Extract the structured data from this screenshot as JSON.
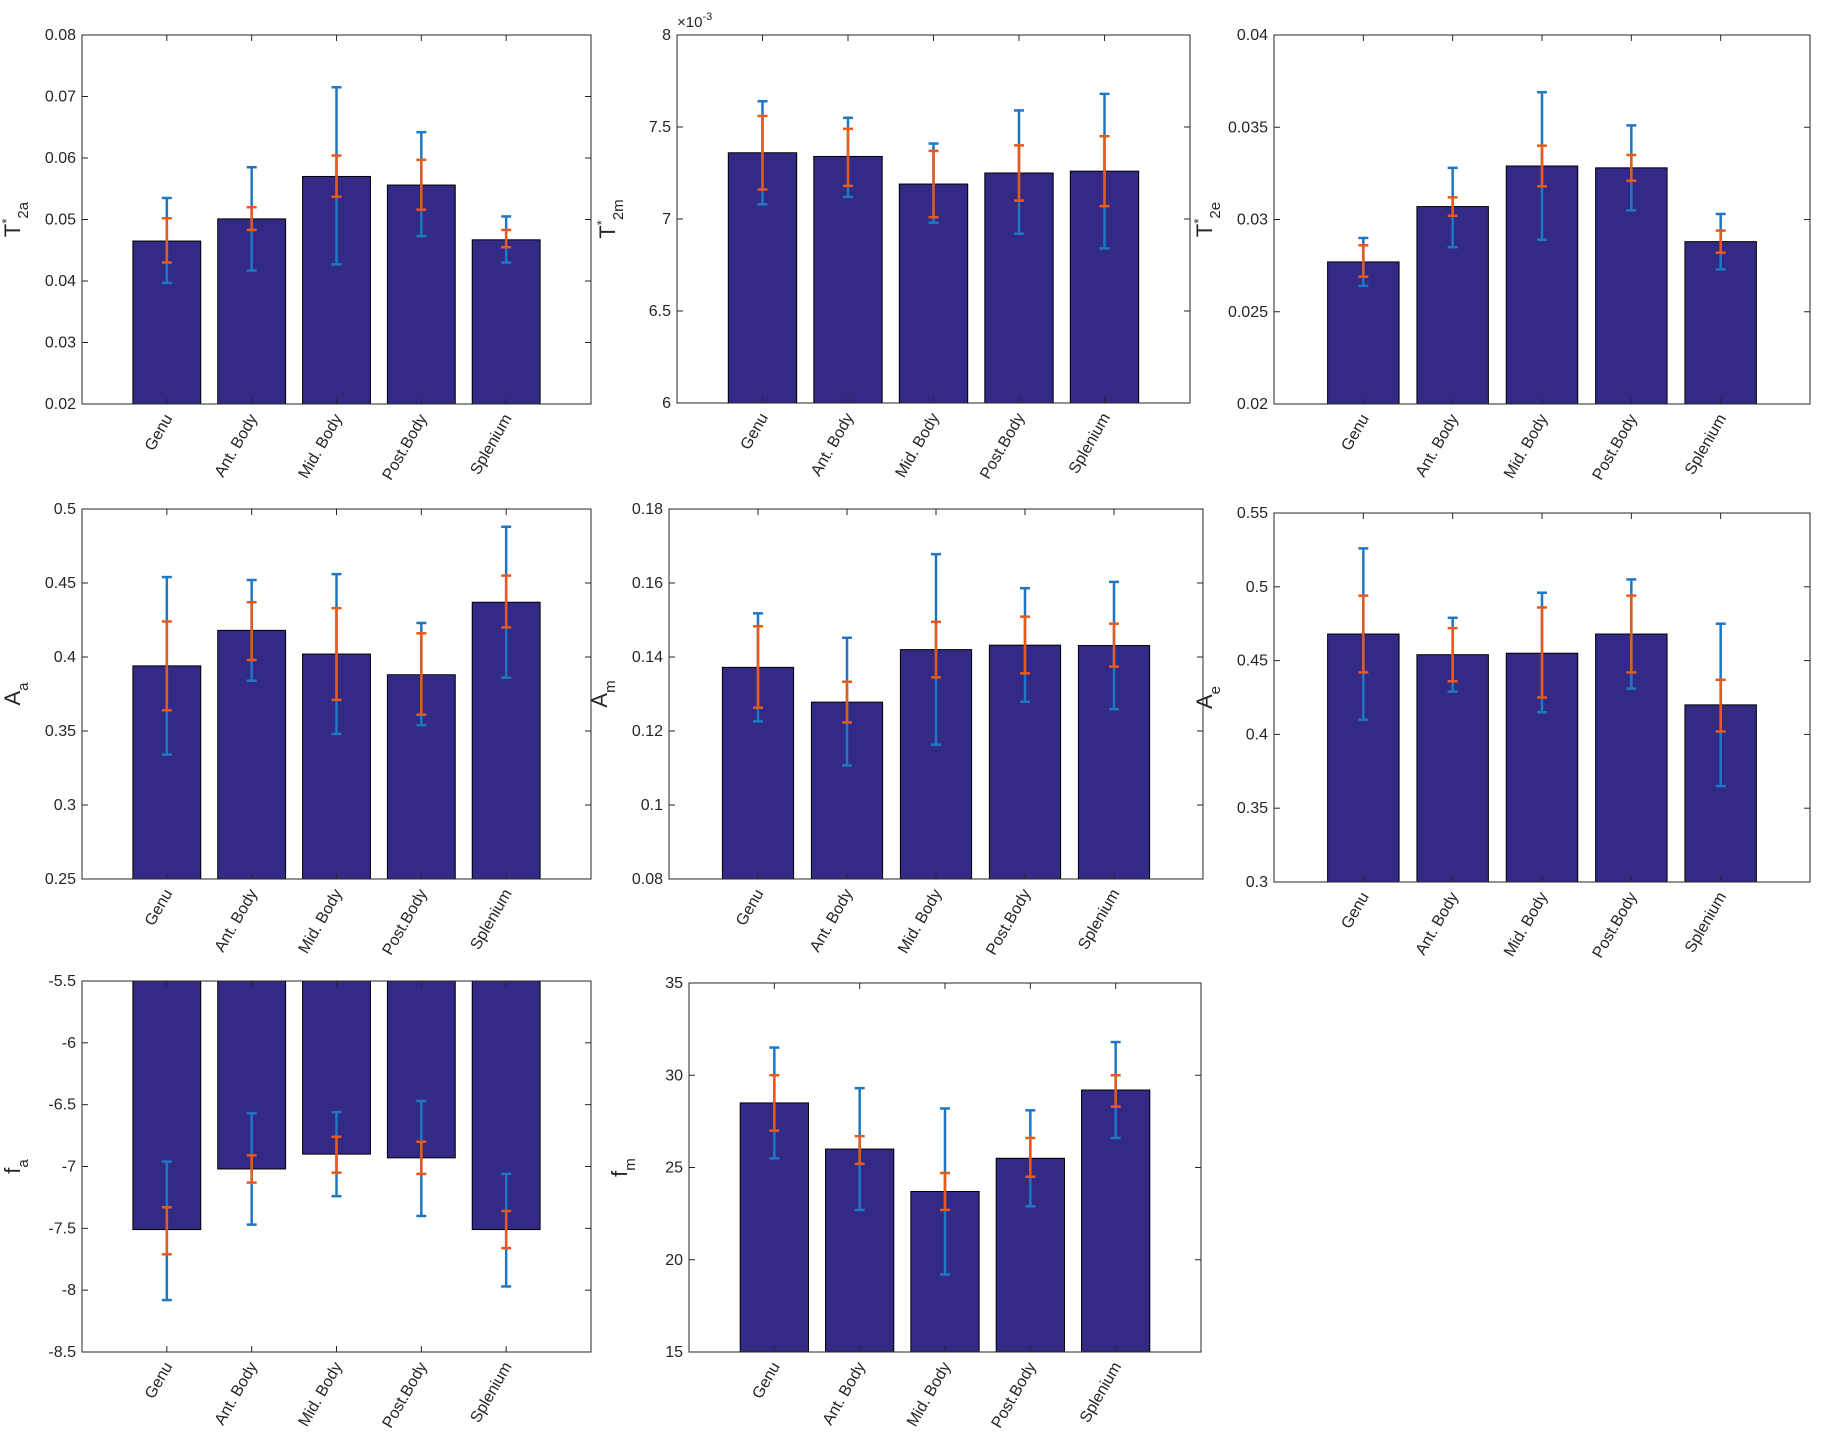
{
  "figure": {
    "bar_color": "#332a85",
    "std_color": "#1f77c4",
    "sem_color": "#e8591a",
    "categories": [
      "Genu",
      "Ant. Body",
      "Mid. Body",
      "Post.Body",
      "Splenium"
    ]
  },
  "chart_data": [
    {
      "type": "bar",
      "ylabel": "T*_{2a}",
      "ylim": [
        0.02,
        0.08
      ],
      "yticks": [
        0.02,
        0.03,
        0.04,
        0.05,
        0.06,
        0.07,
        0.08
      ],
      "yticklabels": [
        "0.02",
        "0.03",
        "0.04",
        "0.05",
        "0.06",
        "0.07",
        "0.08"
      ],
      "categories": [
        "Genu",
        "Ant. Body",
        "Mid. Body",
        "Post.Body",
        "Splenium"
      ],
      "values": [
        0.0465,
        0.0501,
        0.057,
        0.0556,
        0.0467
      ],
      "std_low": [
        0.0397,
        0.0417,
        0.0427,
        0.0473,
        0.043
      ],
      "std_high": [
        0.0535,
        0.0585,
        0.0715,
        0.0642,
        0.0505
      ],
      "sem_low": [
        0.043,
        0.0483,
        0.0537,
        0.0516,
        0.0455
      ],
      "sem_high": [
        0.0502,
        0.052,
        0.0604,
        0.0597,
        0.0483
      ]
    },
    {
      "type": "bar",
      "ylabel": "T*_{2m}",
      "exponent": "×10^-3",
      "ylim": [
        6,
        8
      ],
      "yticks": [
        6,
        6.5,
        7,
        7.5,
        8
      ],
      "yticklabels": [
        "6",
        "6.5",
        "7",
        "7.5",
        "8"
      ],
      "categories": [
        "Genu",
        "Ant. Body",
        "Mid. Body",
        "Post.Body",
        "Splenium"
      ],
      "values": [
        7.36,
        7.34,
        7.19,
        7.25,
        7.26
      ],
      "std_low": [
        7.08,
        7.12,
        6.98,
        6.92,
        6.84
      ],
      "std_high": [
        7.64,
        7.55,
        7.41,
        7.59,
        7.68
      ],
      "sem_low": [
        7.16,
        7.18,
        7.01,
        7.1,
        7.07
      ],
      "sem_high": [
        7.56,
        7.49,
        7.37,
        7.4,
        7.45
      ]
    },
    {
      "type": "bar",
      "ylabel": "T*_{2e}",
      "ylim": [
        0.02,
        0.04
      ],
      "yticks": [
        0.02,
        0.025,
        0.03,
        0.035,
        0.04
      ],
      "yticklabels": [
        "0.02",
        "0.025",
        "0.03",
        "0.035",
        "0.04"
      ],
      "categories": [
        "Genu",
        "Ant. Body",
        "Mid. Body",
        "Post.Body",
        "Splenium"
      ],
      "values": [
        0.0277,
        0.0307,
        0.0329,
        0.0328,
        0.0288
      ],
      "std_low": [
        0.0264,
        0.0285,
        0.0289,
        0.0305,
        0.0273
      ],
      "std_high": [
        0.029,
        0.0328,
        0.0369,
        0.0351,
        0.0303
      ],
      "sem_low": [
        0.0269,
        0.0302,
        0.0318,
        0.0321,
        0.0282
      ],
      "sem_high": [
        0.0286,
        0.0312,
        0.034,
        0.0335,
        0.0294
      ]
    },
    {
      "type": "bar",
      "ylabel": "A_{a}",
      "ylim": [
        0.25,
        0.5
      ],
      "yticks": [
        0.25,
        0.3,
        0.35,
        0.4,
        0.45,
        0.5
      ],
      "yticklabels": [
        "0.25",
        "0.3",
        "0.35",
        "0.4",
        "0.45",
        "0.5"
      ],
      "categories": [
        "Genu",
        "Ant. Body",
        "Mid. Body",
        "Post.Body",
        "Splenium"
      ],
      "values": [
        0.394,
        0.418,
        0.402,
        0.388,
        0.437
      ],
      "std_low": [
        0.334,
        0.384,
        0.348,
        0.354,
        0.386
      ],
      "std_high": [
        0.454,
        0.452,
        0.456,
        0.423,
        0.488
      ],
      "sem_low": [
        0.364,
        0.398,
        0.371,
        0.361,
        0.42
      ],
      "sem_high": [
        0.424,
        0.437,
        0.433,
        0.416,
        0.455
      ]
    },
    {
      "type": "bar",
      "ylabel": "A_{m}",
      "ylim": [
        0.08,
        0.18
      ],
      "yticks": [
        0.08,
        0.1,
        0.12,
        0.14,
        0.16,
        0.18
      ],
      "yticklabels": [
        "0.08",
        "0.1",
        "0.12",
        "0.14",
        "0.16",
        "0.18"
      ],
      "categories": [
        "Genu",
        "Ant. Body",
        "Mid. Body",
        "Post.Body",
        "Splenium"
      ],
      "values": [
        0.1372,
        0.1278,
        0.142,
        0.1432,
        0.1431
      ],
      "std_low": [
        0.1226,
        0.1107,
        0.1163,
        0.1279,
        0.1259
      ],
      "std_high": [
        0.1518,
        0.1452,
        0.1678,
        0.1586,
        0.1603
      ],
      "sem_low": [
        0.1263,
        0.1223,
        0.1345,
        0.1356,
        0.1374
      ],
      "sem_high": [
        0.1483,
        0.1333,
        0.1495,
        0.1509,
        0.149
      ]
    },
    {
      "type": "bar",
      "ylabel": "A_{e}",
      "ylim": [
        0.3,
        0.55
      ],
      "yticks": [
        0.3,
        0.35,
        0.4,
        0.45,
        0.5,
        0.55
      ],
      "yticklabels": [
        "0.3",
        "0.35",
        "0.4",
        "0.45",
        "0.5",
        "0.55"
      ],
      "categories": [
        "Genu",
        "Ant. Body",
        "Mid. Body",
        "Post.Body",
        "Splenium"
      ],
      "values": [
        0.468,
        0.454,
        0.455,
        0.468,
        0.42
      ],
      "std_low": [
        0.41,
        0.429,
        0.415,
        0.431,
        0.365
      ],
      "std_high": [
        0.526,
        0.479,
        0.496,
        0.505,
        0.475
      ],
      "sem_low": [
        0.442,
        0.436,
        0.425,
        0.442,
        0.402
      ],
      "sem_high": [
        0.494,
        0.472,
        0.486,
        0.494,
        0.437
      ]
    },
    {
      "type": "bar",
      "ylabel": "f_{a}",
      "ylim": [
        -8.5,
        -5.5
      ],
      "yticks": [
        -8.5,
        -8,
        -7.5,
        -7,
        -6.5,
        -6,
        -5.5
      ],
      "yticklabels": [
        "-8.5",
        "-8",
        "-7.5",
        "-7",
        "-6.5",
        "-6",
        "-5.5"
      ],
      "categories": [
        "Genu",
        "Ant. Body",
        "Mid. Body",
        "Post.Body",
        "Splenium"
      ],
      "values": [
        -7.51,
        -7.02,
        -6.9,
        -6.93,
        -7.51
      ],
      "std_low": [
        -8.08,
        -7.47,
        -7.24,
        -7.4,
        -7.97
      ],
      "std_high": [
        -6.96,
        -6.57,
        -6.56,
        -6.47,
        -7.06
      ],
      "sem_low": [
        -7.71,
        -7.13,
        -7.05,
        -7.06,
        -7.66
      ],
      "sem_high": [
        -7.33,
        -6.91,
        -6.76,
        -6.8,
        -7.36
      ]
    },
    {
      "type": "bar",
      "ylabel": "f_{m}",
      "ylim": [
        15,
        35
      ],
      "yticks": [
        15,
        20,
        25,
        30,
        35
      ],
      "yticklabels": [
        "15",
        "20",
        "25",
        "30",
        "35"
      ],
      "categories": [
        "Genu",
        "Ant. Body",
        "Mid. Body",
        "Post.Body",
        "Splenium"
      ],
      "values": [
        28.5,
        26.0,
        23.7,
        25.5,
        29.2
      ],
      "std_low": [
        25.5,
        22.7,
        19.2,
        22.9,
        26.6
      ],
      "std_high": [
        31.5,
        29.3,
        28.2,
        28.1,
        31.8
      ],
      "sem_low": [
        27.0,
        25.2,
        22.7,
        24.5,
        28.3
      ],
      "sem_high": [
        30.0,
        26.7,
        24.7,
        26.6,
        30.0
      ]
    }
  ]
}
